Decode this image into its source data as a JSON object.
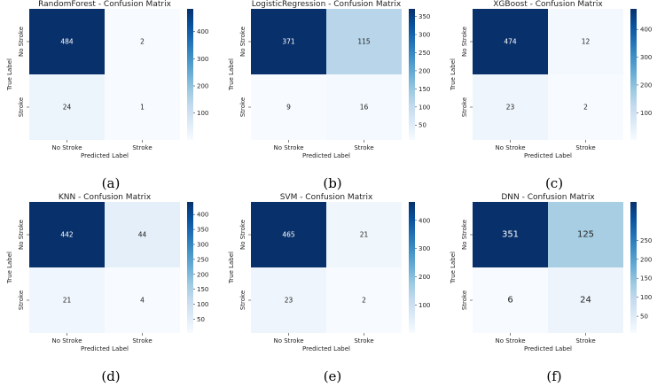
{
  "chart_data": [
    {
      "type": "heatmap",
      "title": "RandomForest - Confusion Matrix",
      "xlabel": "Predicted Label",
      "ylabel": "True Label",
      "x_categories": [
        "No Stroke",
        "Stroke"
      ],
      "y_categories": [
        "No Stroke",
        "Stroke"
      ],
      "values": [
        [
          484,
          2
        ],
        [
          24,
          1
        ]
      ],
      "colorbar_ticks": [
        100,
        200,
        300,
        400
      ],
      "caption": "(a)"
    },
    {
      "type": "heatmap",
      "title": "LogisticRegression - Confusion Matrix",
      "xlabel": "Predicted Label",
      "ylabel": "True Label",
      "x_categories": [
        "No Stroke",
        "Stroke"
      ],
      "y_categories": [
        "No Stroke",
        "Stroke"
      ],
      "values": [
        [
          371,
          115
        ],
        [
          9,
          16
        ]
      ],
      "colorbar_ticks": [
        50,
        100,
        150,
        200,
        250,
        300,
        350
      ],
      "caption": "(b)"
    },
    {
      "type": "heatmap",
      "title": "XGBoost - Confusion Matrix",
      "xlabel": "Predicted Label",
      "ylabel": "True Label",
      "x_categories": [
        "No Stroke",
        "Stroke"
      ],
      "y_categories": [
        "No Stroke",
        "Stroke"
      ],
      "values": [
        [
          474,
          12
        ],
        [
          23,
          2
        ]
      ],
      "colorbar_ticks": [
        100,
        200,
        300,
        400
      ],
      "caption": "(c)"
    },
    {
      "type": "heatmap",
      "title": "KNN - Confusion Matrix",
      "xlabel": "Predicted Label",
      "ylabel": "True Label",
      "x_categories": [
        "No Stroke",
        "Stroke"
      ],
      "y_categories": [
        "No Stroke",
        "Stroke"
      ],
      "values": [
        [
          442,
          44
        ],
        [
          21,
          4
        ]
      ],
      "colorbar_ticks": [
        50,
        100,
        150,
        200,
        250,
        300,
        350,
        400
      ],
      "caption": "(d)"
    },
    {
      "type": "heatmap",
      "title": "SVM - Confusion Matrix",
      "xlabel": "Predicted Label",
      "ylabel": "True Label",
      "x_categories": [
        "No Stroke",
        "Stroke"
      ],
      "y_categories": [
        "No Stroke",
        "Stroke"
      ],
      "values": [
        [
          465,
          21
        ],
        [
          23,
          2
        ]
      ],
      "colorbar_ticks": [
        100,
        200,
        300,
        400
      ],
      "caption": "(e)"
    },
    {
      "type": "heatmap",
      "title": "DNN - Confusion Matrix",
      "xlabel": "Predicted Label",
      "ylabel": "True Label",
      "x_categories": [
        "No Stroke",
        "Stroke"
      ],
      "y_categories": [
        "No Stroke",
        "Stroke"
      ],
      "values": [
        [
          351,
          125
        ],
        [
          6,
          24
        ]
      ],
      "colorbar_ticks": [
        50,
        100,
        150,
        200,
        250
      ],
      "caption": "(f)"
    }
  ],
  "colors": {
    "colormap": "Blues",
    "low": "#f7fbff",
    "high": "#08306b",
    "text_dark": "#222222",
    "text_light": "#ffffff"
  }
}
